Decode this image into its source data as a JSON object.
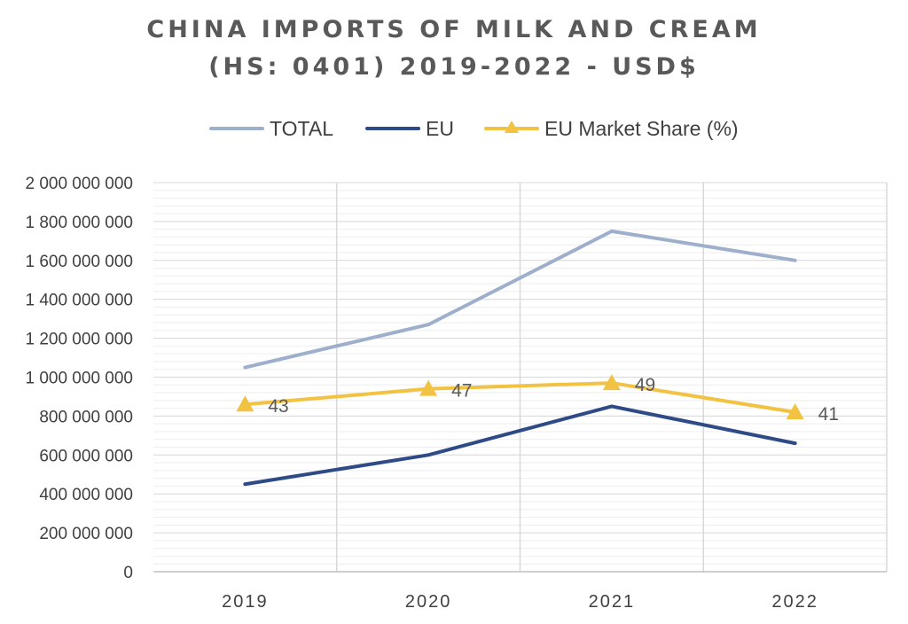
{
  "title_line1": "CHINA IMPORTS OF MILK AND CREAM",
  "title_line2": "(HS: 0401) 2019-2022 - USD$",
  "legend": [
    {
      "label": "TOTAL",
      "color": "#9dafcb",
      "marker": "none"
    },
    {
      "label": "EU",
      "color": "#2e4a87",
      "marker": "none"
    },
    {
      "label": "EU Market Share (%)",
      "color": "#f2c242",
      "marker": "triangle"
    }
  ],
  "chart_data": {
    "type": "line",
    "title": "CHINA IMPORTS OF MILK AND CREAM (HS: 0401) 2019-2022 - USD$",
    "xlabel": "",
    "ylabel": "",
    "categories": [
      "2019",
      "2020",
      "2021",
      "2022"
    ],
    "ylim": [
      0,
      2000000000
    ],
    "yticks": [
      "0",
      "200 000 000",
      "400 000 000",
      "600 000 000",
      "800 000 000",
      "1 000 000 000",
      "1 200 000 000",
      "1 400 000 000",
      "1 600 000 000",
      "1 800 000 000",
      "2 000 000 000"
    ],
    "grid": true,
    "legend_position": "top",
    "series": [
      {
        "name": "TOTAL",
        "color": "#9dafcb",
        "values": [
          1050000000,
          1270000000,
          1750000000,
          1600000000
        ]
      },
      {
        "name": "EU",
        "color": "#2e4a87",
        "values": [
          450000000,
          600000000,
          850000000,
          660000000
        ]
      },
      {
        "name": "EU Market Share (%)",
        "color": "#f2c242",
        "marker": "triangle",
        "plotted_values": [
          860000000,
          940000000,
          970000000,
          820000000
        ],
        "data_labels": [
          "43",
          "47",
          "49",
          "41"
        ]
      }
    ]
  }
}
